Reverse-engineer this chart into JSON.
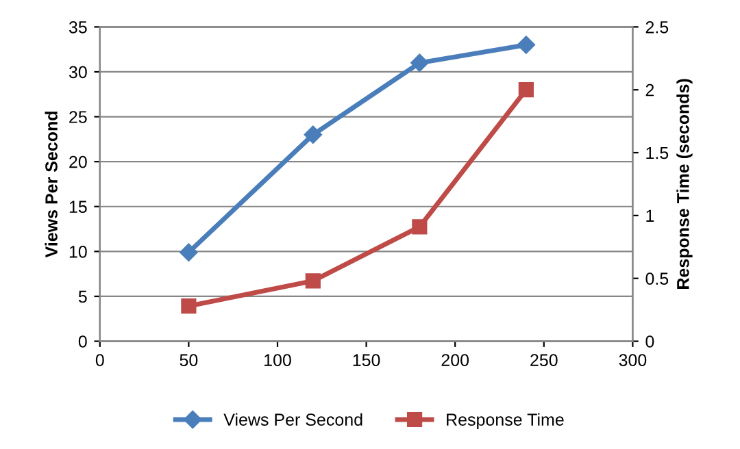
{
  "chart_data": {
    "type": "line",
    "x": [
      50,
      120,
      180,
      240
    ],
    "series": [
      {
        "name": "Views Per Second",
        "color": "#4a7ebb",
        "marker": "diamond",
        "values": [
          9.9,
          23,
          31,
          33
        ]
      },
      {
        "name": "Response Time",
        "color": "#be4b48",
        "marker": "square",
        "axis": "y2",
        "values": [
          0.28,
          0.48,
          0.91,
          2.0
        ]
      }
    ],
    "ylabel": "Views Per Second",
    "y2label": "Response Time (seconds)",
    "xlim": [
      0,
      300
    ],
    "xticks": [
      0,
      50,
      100,
      150,
      200,
      250,
      300
    ],
    "ylim": [
      0,
      35
    ],
    "yticks": [
      0,
      5,
      10,
      15,
      20,
      25,
      30,
      35
    ],
    "y2lim": [
      0,
      2.5
    ],
    "y2ticks": [
      0,
      0.5,
      1,
      1.5,
      2,
      2.5
    ],
    "grid": "y",
    "legend": "bottom",
    "line_style": "solid"
  }
}
